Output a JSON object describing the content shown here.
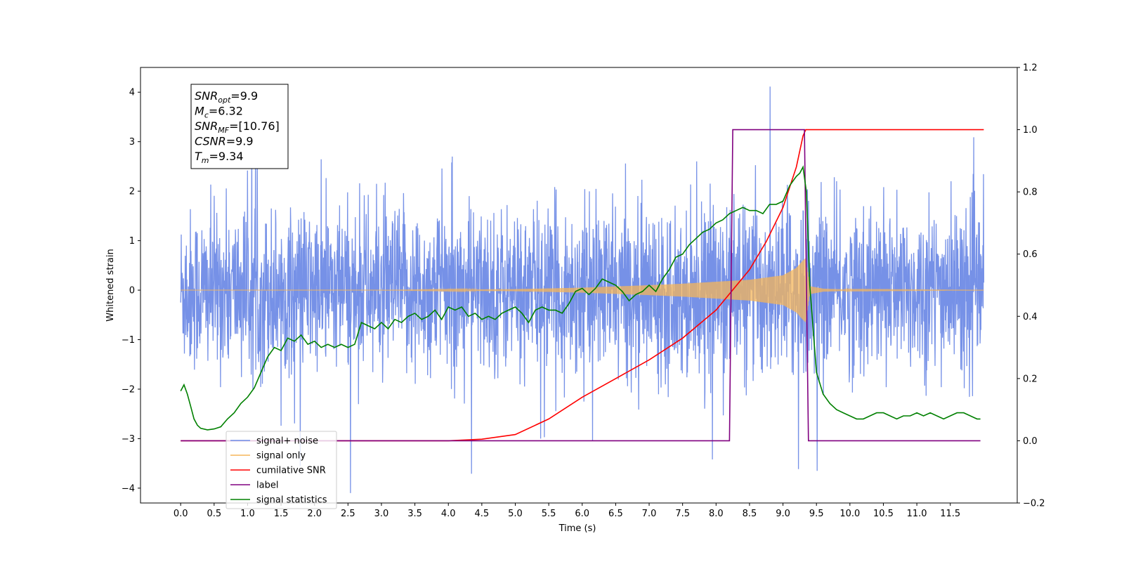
{
  "chart_data": {
    "type": "line",
    "title": "",
    "xlabel": "Time (s)",
    "ylabel_left": "Whitened strain",
    "ylabel_right": "",
    "xlim": [
      -0.6,
      12.5
    ],
    "ylim_left": [
      -4.3,
      4.5
    ],
    "ylim_right": [
      -0.2,
      1.2
    ],
    "x_ticks": [
      0.0,
      0.5,
      1.0,
      1.5,
      2.0,
      2.5,
      3.0,
      3.5,
      4.0,
      4.5,
      5.0,
      5.5,
      6.0,
      6.5,
      7.0,
      7.5,
      8.0,
      8.5,
      9.0,
      9.5,
      10.0,
      10.5,
      11.0,
      11.5
    ],
    "x_tick_labels": [
      "0.0",
      "0.5",
      "1.0",
      "1.5",
      "2.0",
      "2.5",
      "3.0",
      "3.5",
      "4.0",
      "4.5",
      "5.0",
      "5.5",
      "6.0",
      "6.5",
      "7.0",
      "7.5",
      "8.0",
      "8.5",
      "9.0",
      "9.5",
      "10.0",
      "10.5",
      "11.0",
      "11.5"
    ],
    "y_ticks_left": [
      -4,
      -3,
      -2,
      -1,
      0,
      1,
      2,
      3,
      4
    ],
    "y_tick_labels_left": [
      "−4",
      "−3",
      "−2",
      "−1",
      "0",
      "1",
      "2",
      "3",
      "4"
    ],
    "y_ticks_right": [
      -0.2,
      0.0,
      0.2,
      0.4,
      0.6,
      0.8,
      1.0,
      1.2
    ],
    "y_tick_labels_right": [
      "−0.2",
      "0.0",
      "0.2",
      "0.4",
      "0.6",
      "0.8",
      "1.0",
      "1.2"
    ],
    "grid": false,
    "legend_position": "lower-left",
    "annotation": {
      "lines": [
        {
          "base": "SNR",
          "sub": "opt",
          "value": "=9.9"
        },
        {
          "base": "M",
          "sub": "c",
          "value": "=6.32"
        },
        {
          "base": "SNR",
          "sub": "MF",
          "value": "=[10.76]"
        },
        {
          "base": "CSNR",
          "sub": "",
          "value": "=9.9"
        },
        {
          "base": "T",
          "sub": "m",
          "value": "=9.34"
        }
      ]
    },
    "series": [
      {
        "name": "signal+ noise",
        "axis": "left",
        "color": "#6f8be6",
        "kind": "noise",
        "x_range": [
          0.0,
          12.0
        ],
        "std": 0.95,
        "peak_abs": 4.1
      },
      {
        "name": "signal only",
        "axis": "left",
        "color": "#f5b65a",
        "kind": "chirp",
        "x": [
          0.0,
          3.0,
          4.0,
          5.0,
          6.0,
          7.0,
          7.5,
          8.0,
          8.5,
          9.0,
          9.2,
          9.3,
          9.34,
          9.4,
          9.6,
          10.0,
          12.0
        ],
        "envelope": [
          0.0,
          0.0,
          0.01,
          0.02,
          0.05,
          0.1,
          0.13,
          0.17,
          0.21,
          0.3,
          0.45,
          0.6,
          0.65,
          0.08,
          0.03,
          0.01,
          0.0
        ]
      },
      {
        "name": "cumilative SNR",
        "axis": "right",
        "color": "#ff0000",
        "x": [
          0.0,
          4.0,
          4.5,
          5.0,
          5.5,
          6.0,
          6.5,
          7.0,
          7.5,
          8.0,
          8.5,
          8.75,
          9.0,
          9.2,
          9.3,
          9.34,
          12.0
        ],
        "y": [
          0.0,
          0.0,
          0.005,
          0.02,
          0.07,
          0.14,
          0.2,
          0.26,
          0.33,
          0.42,
          0.55,
          0.64,
          0.75,
          0.88,
          0.98,
          1.0,
          1.0
        ]
      },
      {
        "name": "label",
        "axis": "right",
        "color": "#800080",
        "x": [
          0.0,
          8.2,
          8.25,
          9.32,
          9.38,
          11.95
        ],
        "y": [
          0.0,
          0.0,
          1.0,
          1.0,
          0.0,
          0.0
        ]
      },
      {
        "name": "signal statistics",
        "axis": "right",
        "color": "#008000",
        "x": [
          0.0,
          0.05,
          0.1,
          0.15,
          0.2,
          0.25,
          0.3,
          0.4,
          0.5,
          0.6,
          0.7,
          0.8,
          0.9,
          1.0,
          1.1,
          1.2,
          1.3,
          1.4,
          1.5,
          1.6,
          1.7,
          1.8,
          1.9,
          2.0,
          2.1,
          2.2,
          2.3,
          2.4,
          2.5,
          2.6,
          2.7,
          2.8,
          2.9,
          3.0,
          3.1,
          3.2,
          3.3,
          3.4,
          3.5,
          3.6,
          3.7,
          3.8,
          3.9,
          4.0,
          4.1,
          4.2,
          4.3,
          4.4,
          4.5,
          4.6,
          4.7,
          4.8,
          4.9,
          5.0,
          5.1,
          5.2,
          5.3,
          5.4,
          5.5,
          5.6,
          5.7,
          5.8,
          5.9,
          6.0,
          6.1,
          6.2,
          6.3,
          6.4,
          6.5,
          6.6,
          6.7,
          6.8,
          6.9,
          7.0,
          7.1,
          7.2,
          7.3,
          7.4,
          7.5,
          7.6,
          7.7,
          7.8,
          7.9,
          8.0,
          8.1,
          8.2,
          8.3,
          8.4,
          8.5,
          8.6,
          8.7,
          8.8,
          8.9,
          9.0,
          9.1,
          9.2,
          9.25,
          9.3,
          9.35,
          9.4,
          9.5,
          9.6,
          9.7,
          9.8,
          9.9,
          10.0,
          10.1,
          10.2,
          10.3,
          10.4,
          10.5,
          10.6,
          10.7,
          10.8,
          10.9,
          11.0,
          11.1,
          11.2,
          11.3,
          11.4,
          11.5,
          11.6,
          11.7,
          11.8,
          11.9,
          11.95
        ],
        "y": [
          0.16,
          0.18,
          0.15,
          0.11,
          0.07,
          0.05,
          0.04,
          0.035,
          0.038,
          0.045,
          0.07,
          0.09,
          0.12,
          0.14,
          0.17,
          0.22,
          0.27,
          0.3,
          0.29,
          0.33,
          0.32,
          0.34,
          0.31,
          0.32,
          0.3,
          0.31,
          0.3,
          0.31,
          0.3,
          0.31,
          0.38,
          0.37,
          0.36,
          0.38,
          0.36,
          0.39,
          0.38,
          0.4,
          0.41,
          0.39,
          0.4,
          0.42,
          0.39,
          0.43,
          0.42,
          0.43,
          0.4,
          0.41,
          0.39,
          0.4,
          0.39,
          0.41,
          0.42,
          0.43,
          0.41,
          0.38,
          0.42,
          0.43,
          0.42,
          0.42,
          0.41,
          0.44,
          0.48,
          0.49,
          0.47,
          0.49,
          0.52,
          0.51,
          0.5,
          0.48,
          0.45,
          0.47,
          0.48,
          0.5,
          0.48,
          0.52,
          0.55,
          0.59,
          0.6,
          0.63,
          0.65,
          0.67,
          0.68,
          0.7,
          0.71,
          0.73,
          0.74,
          0.75,
          0.74,
          0.74,
          0.73,
          0.76,
          0.76,
          0.77,
          0.82,
          0.85,
          0.86,
          0.88,
          0.8,
          0.5,
          0.22,
          0.15,
          0.12,
          0.1,
          0.09,
          0.08,
          0.07,
          0.07,
          0.08,
          0.09,
          0.09,
          0.08,
          0.07,
          0.08,
          0.08,
          0.09,
          0.08,
          0.09,
          0.08,
          0.07,
          0.08,
          0.09,
          0.09,
          0.08,
          0.07,
          0.07
        ]
      }
    ],
    "legend_lines": [
      {
        "label": "signal+ noise",
        "color": "#6f8be6"
      },
      {
        "label": "signal only",
        "color": "#f5b65a"
      },
      {
        "label": "cumilative SNR",
        "color": "#ff0000"
      },
      {
        "label": "label",
        "color": "#800080"
      },
      {
        "label": "signal statistics",
        "color": "#008000"
      }
    ]
  }
}
